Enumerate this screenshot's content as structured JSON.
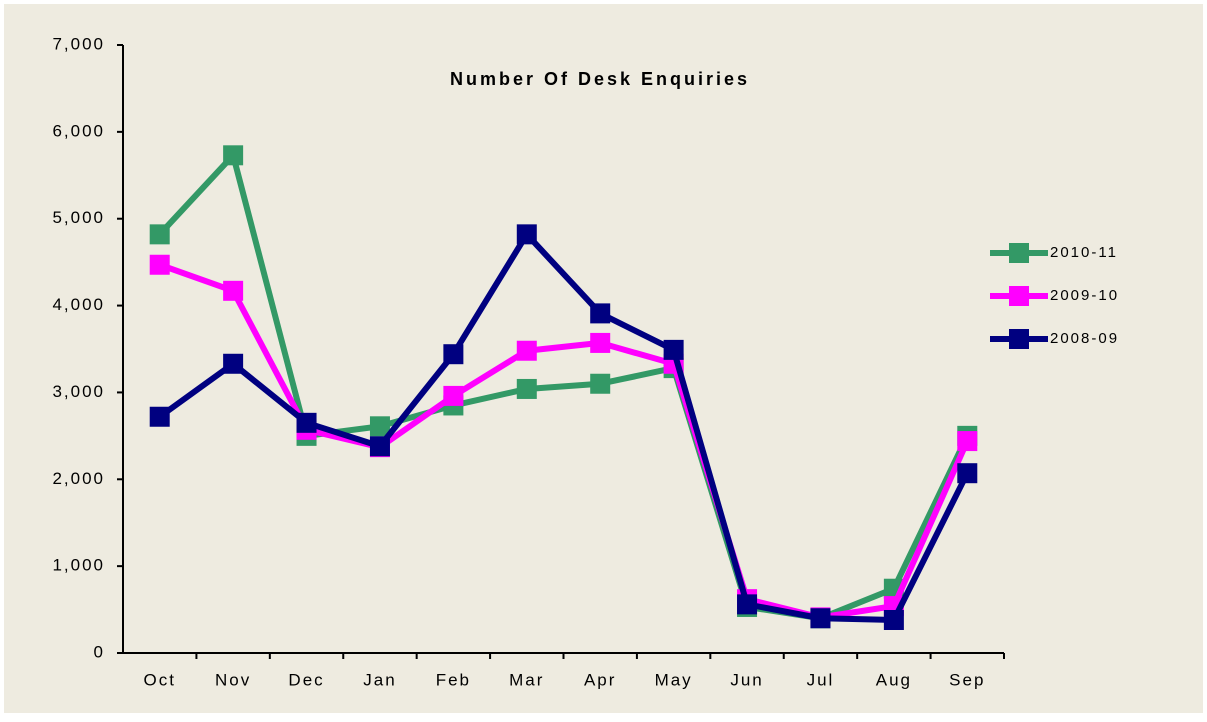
{
  "chart_data": {
    "type": "line",
    "title": "Number Of Desk Enquiries",
    "categories": [
      "Oct",
      "Nov",
      "Dec",
      "Jan",
      "Feb",
      "Mar",
      "Apr",
      "May",
      "Jun",
      "Jul",
      "Aug",
      "Sep"
    ],
    "series": [
      {
        "name": "2010-11",
        "color": "#339966",
        "values": [
          4820,
          5730,
          2500,
          2610,
          2850,
          3040,
          3100,
          3280,
          530,
          400,
          740,
          2500
        ]
      },
      {
        "name": "2009-10",
        "color": "#ff00ff",
        "values": [
          4470,
          4170,
          2570,
          2370,
          2960,
          3480,
          3570,
          3330,
          620,
          410,
          540,
          2440
        ]
      },
      {
        "name": "2008-09",
        "color": "#000080",
        "values": [
          2720,
          3330,
          2650,
          2380,
          3440,
          4820,
          3910,
          3490,
          560,
          400,
          380,
          2070
        ]
      }
    ],
    "ylim": [
      0,
      7000
    ],
    "yticks": [
      0,
      {
        "value": 1000,
        "label": "1,000"
      },
      {
        "value": 2000,
        "label": "2,000"
      },
      {
        "value": 3000,
        "label": "3,000"
      },
      {
        "value": 4000,
        "label": "4,000"
      },
      {
        "value": 5000,
        "label": "5,000"
      },
      {
        "value": 6000,
        "label": "6,000"
      },
      {
        "value": 7000,
        "label": "7,000"
      }
    ],
    "legend": "right"
  }
}
